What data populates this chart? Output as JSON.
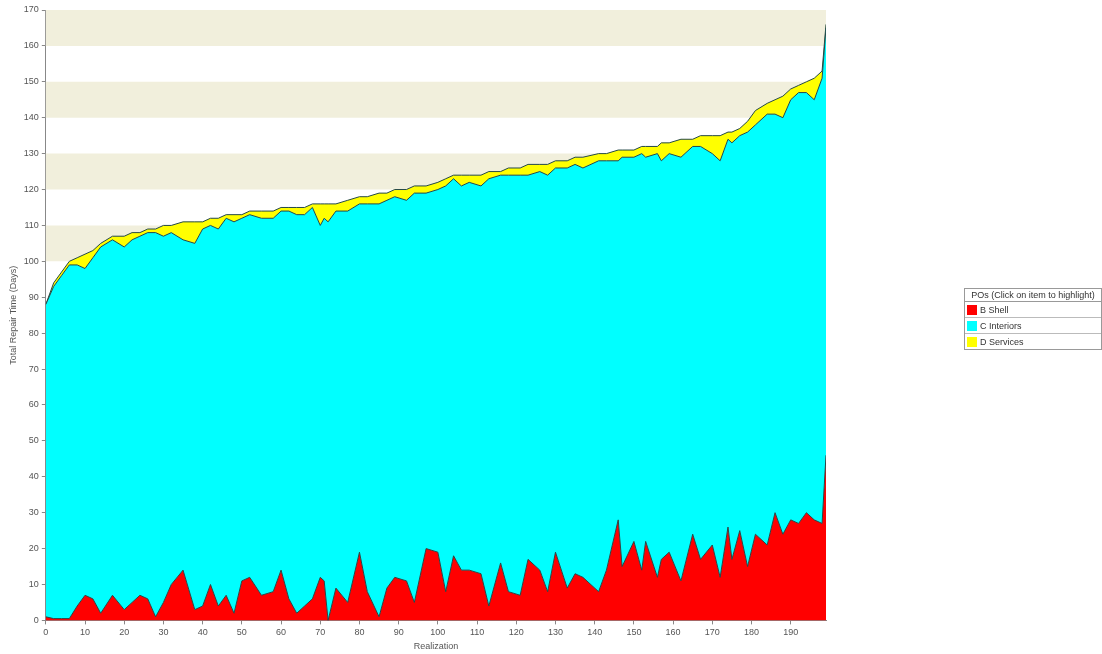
{
  "chart_data": {
    "type": "area",
    "stacked": true,
    "xlabel": "Realization",
    "ylabel": "Total Repair Time (Days)",
    "legend_title": "POs (Click on item to highlight)",
    "legend": "right",
    "marker": "none",
    "x": [
      0,
      2,
      4,
      6,
      8,
      10,
      12,
      14,
      17,
      20,
      22,
      24,
      26,
      28,
      30,
      32,
      35,
      38,
      40,
      42,
      44,
      46,
      48,
      50,
      52,
      55,
      58,
      60,
      62,
      64,
      66,
      68,
      70,
      71,
      72,
      74,
      77,
      80,
      82,
      85,
      87,
      89,
      92,
      94,
      97,
      100,
      102,
      104,
      106,
      108,
      111,
      113,
      116,
      118,
      121,
      123,
      126,
      128,
      130,
      133,
      135,
      137,
      141,
      143,
      146,
      147,
      150,
      152,
      153,
      156,
      157,
      159,
      162,
      165,
      167,
      170,
      172,
      174,
      175,
      177,
      179,
      181,
      184,
      186,
      188,
      190,
      192,
      194,
      196,
      198,
      199
    ],
    "xlim": [
      0,
      199
    ],
    "xticks": [
      0,
      10,
      20,
      30,
      40,
      50,
      60,
      70,
      80,
      90,
      100,
      110,
      120,
      130,
      140,
      150,
      160,
      170,
      180,
      190
    ],
    "ylim": [
      0,
      170
    ],
    "yticks": [
      0,
      10,
      20,
      30,
      40,
      50,
      60,
      70,
      80,
      90,
      100,
      110,
      120,
      130,
      140,
      150,
      160,
      170
    ],
    "bands": [
      {
        "axis": "y",
        "from": 100,
        "to": 110,
        "color": "#f1efdc"
      },
      {
        "axis": "y",
        "from": 120,
        "to": 130,
        "color": "#f1efdc"
      },
      {
        "axis": "y",
        "from": 140,
        "to": 150,
        "color": "#f1efdc"
      },
      {
        "axis": "y",
        "from": 160,
        "to": 170,
        "color": "#f1efdc"
      }
    ],
    "series": [
      {
        "name": "B Shell",
        "color": "#ff0000",
        "values": [
          1,
          0.5,
          0.5,
          0.5,
          4,
          7,
          6,
          2,
          7,
          3,
          5,
          7,
          6,
          1,
          5,
          10,
          14,
          3,
          4,
          10,
          4,
          7,
          2,
          11,
          12,
          7,
          8,
          14,
          6,
          2,
          4,
          6,
          12,
          11,
          0,
          9,
          5,
          19,
          8,
          1,
          9,
          12,
          11,
          5,
          20,
          19,
          8,
          18,
          14,
          14,
          13,
          4,
          16,
          8,
          7,
          17,
          14,
          8,
          19,
          9,
          13,
          12,
          8,
          14,
          28,
          15,
          22,
          14,
          22,
          12,
          17,
          19,
          11,
          24,
          17,
          21,
          12,
          26,
          17,
          25,
          15,
          24,
          21,
          30,
          24,
          28,
          27,
          30,
          28,
          27,
          46
        ]
      },
      {
        "name": "C Interiors",
        "color": "#00ffff",
        "values": [
          87,
          92.5,
          95.5,
          98.5,
          95,
          91,
          95,
          102,
          99,
          101,
          101,
          100,
          102,
          107,
          102,
          98,
          92,
          102,
          105,
          100,
          105,
          105,
          109,
          101,
          101,
          105,
          104,
          100,
          108,
          111,
          109,
          109,
          98,
          101,
          111,
          105,
          109,
          97,
          108,
          115,
          108,
          106,
          106,
          114,
          99,
          101,
          113,
          105,
          107,
          108,
          108,
          119,
          108,
          116,
          117,
          107,
          111,
          116,
          107,
          117,
          114,
          114,
          120,
          114,
          100,
          114,
          107,
          116,
          107,
          118,
          111,
          111,
          118,
          108,
          115,
          109,
          116,
          108,
          116,
          110,
          121,
          114,
          120,
          111,
          116,
          117,
          120,
          117,
          117,
          124,
          119
        ]
      },
      {
        "name": "D Services",
        "color": "#ffff00",
        "values": [
          0,
          1,
          1,
          1,
          2,
          4,
          2,
          1,
          1,
          3,
          2,
          1,
          1,
          1,
          3,
          2,
          5,
          6,
          2,
          2,
          3,
          1,
          2,
          1,
          1,
          2,
          2,
          1,
          1,
          2,
          2,
          1,
          6,
          4,
          5,
          2,
          3,
          2,
          2,
          3,
          2,
          2,
          3,
          2,
          2,
          2,
          2,
          1,
          3,
          2,
          3,
          2,
          1,
          2,
          2,
          3,
          2,
          3,
          2,
          2,
          2,
          3,
          2,
          2,
          3,
          2,
          2,
          2,
          3,
          2,
          5,
          3,
          5,
          2,
          3,
          5,
          7,
          2,
          3,
          2,
          3,
          4,
          3,
          4,
          6,
          3,
          2,
          3,
          6,
          2,
          1
        ]
      }
    ]
  }
}
